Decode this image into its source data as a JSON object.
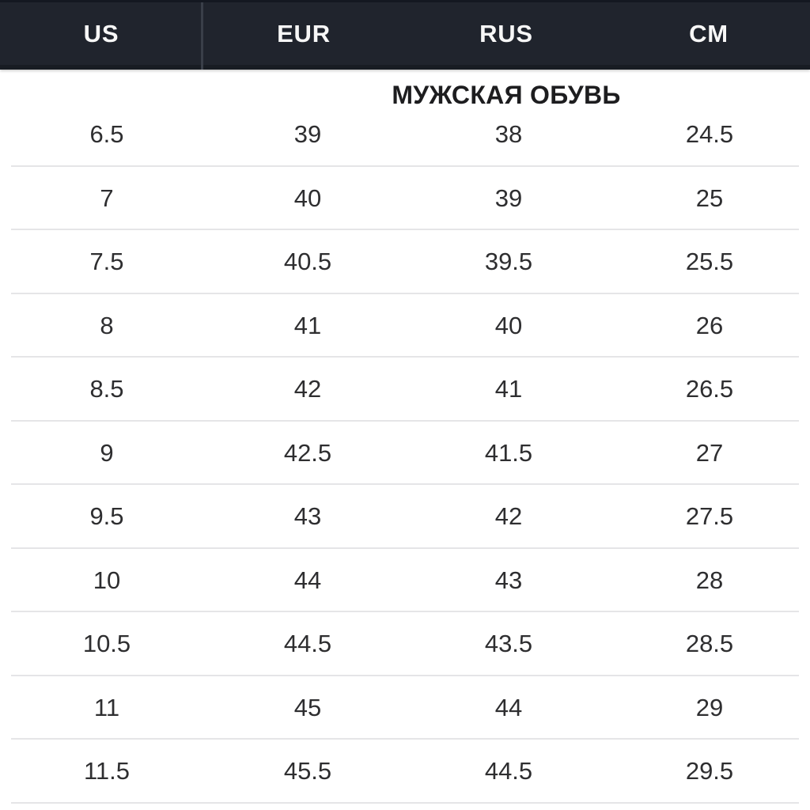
{
  "header": {
    "columns": [
      "US",
      "EUR",
      "RUS",
      "CM"
    ]
  },
  "section": {
    "title": "МУЖСКАЯ ОБУВЬ"
  },
  "table": {
    "rows": [
      [
        "6.5",
        "39",
        "38",
        "24.5"
      ],
      [
        "7",
        "40",
        "39",
        "25"
      ],
      [
        "7.5",
        "40.5",
        "39.5",
        "25.5"
      ],
      [
        "8",
        "41",
        "40",
        "26"
      ],
      [
        "8.5",
        "42",
        "41",
        "26.5"
      ],
      [
        "9",
        "42.5",
        "41.5",
        "27"
      ],
      [
        "9.5",
        "43",
        "42",
        "27.5"
      ],
      [
        "10",
        "44",
        "43",
        "28"
      ],
      [
        "10.5",
        "44.5",
        "43.5",
        "28.5"
      ],
      [
        "11",
        "45",
        "44",
        "29"
      ],
      [
        "11.5",
        "45.5",
        "44.5",
        "29.5"
      ]
    ]
  },
  "colors": {
    "page_bg": "#ffffff",
    "header_bg": "#20242d",
    "header_top_edge": "#141821",
    "header_bottom_edge": "#181c23",
    "header_divider": "#3a3f49",
    "header_text": "#f7f7f7",
    "title_text": "#1d1d1f",
    "body_text": "#2e2e30",
    "row_divider": "#e5e5e7"
  }
}
